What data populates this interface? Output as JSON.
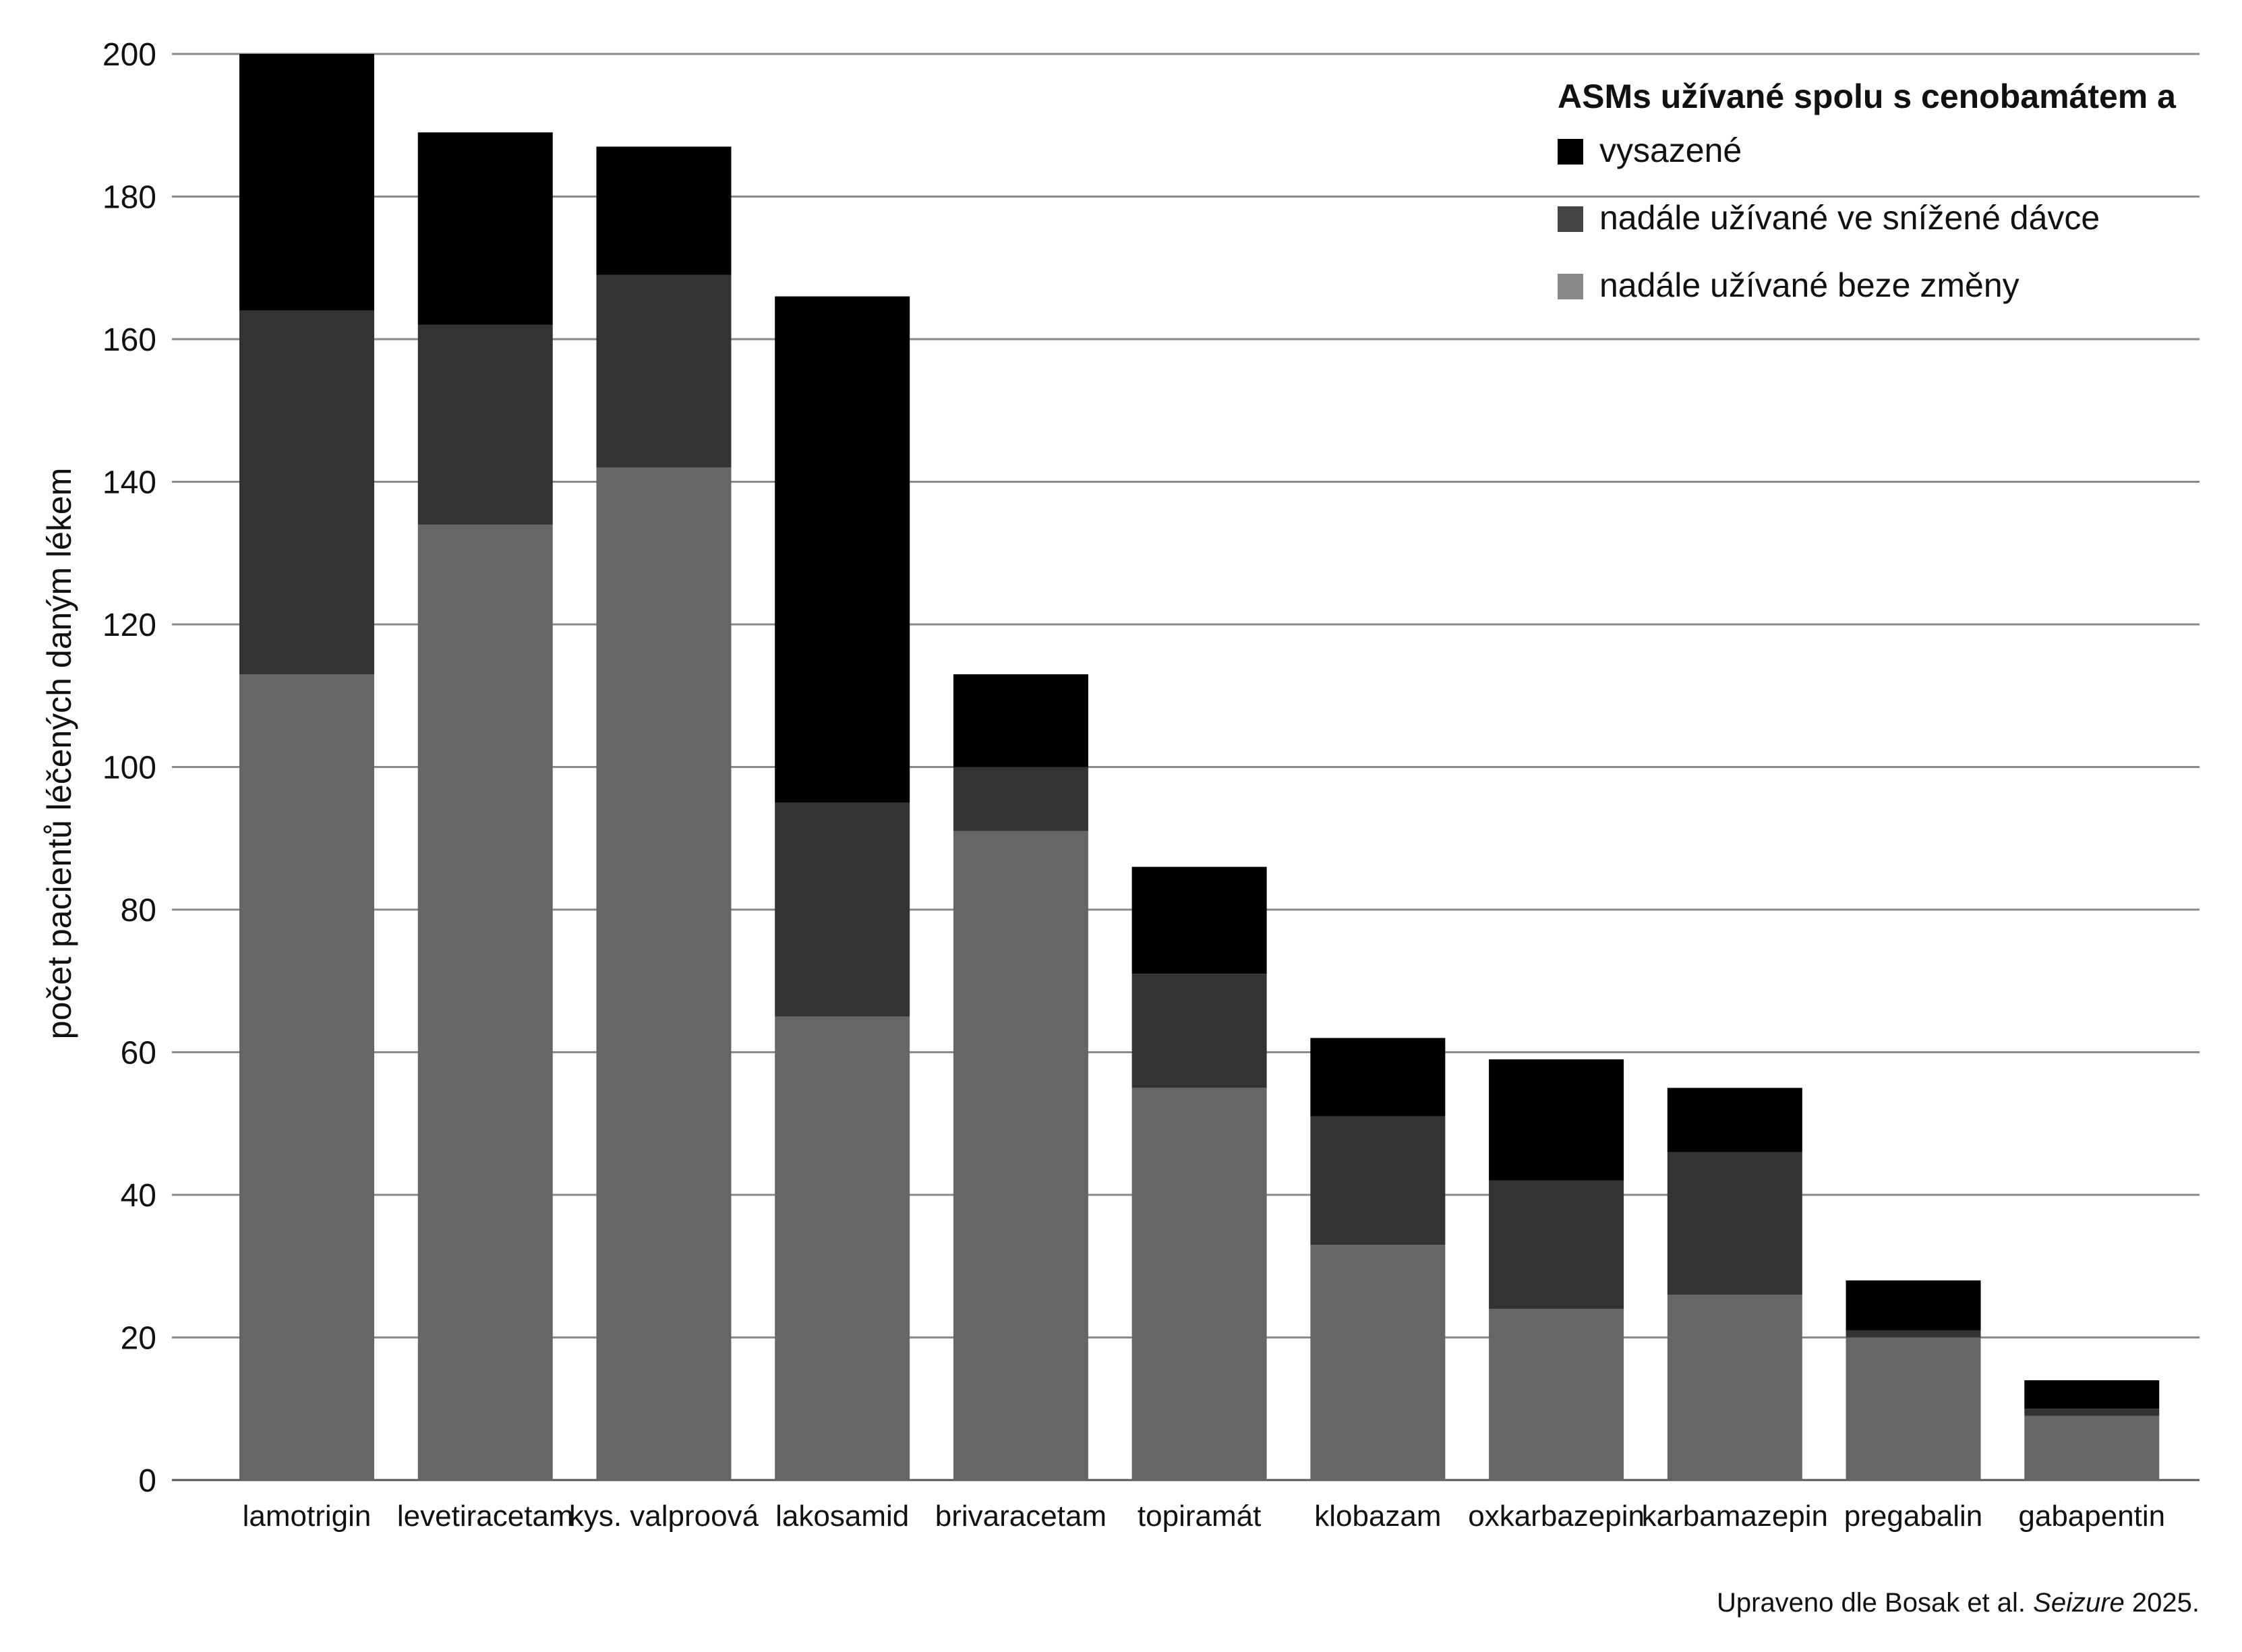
{
  "chart_data": {
    "type": "bar",
    "stacked": true,
    "ylabel": "počet pacientů léčených daným lékem",
    "xlabel": "",
    "ylim": [
      0,
      200
    ],
    "yticks": [
      0,
      20,
      40,
      60,
      80,
      100,
      120,
      140,
      160,
      180,
      200
    ],
    "grid": true,
    "legend_position": "top-right",
    "legend_title": "ASMs užívané spolu s cenobamátem a",
    "categories": [
      "lamotrigin",
      "levetiracetam",
      "kys. valproová",
      "lakosamid",
      "brivaracetam",
      "topiramát",
      "klobazam",
      "oxkarbazepin",
      "karbamazepin",
      "pregabalin",
      "gabapentin"
    ],
    "series": [
      {
        "name": "nadále užívané beze změny",
        "color": "#666666",
        "values": [
          113,
          134,
          142,
          65,
          91,
          55,
          33,
          24,
          26,
          20,
          9
        ]
      },
      {
        "name": "nadále užívané ve snížené dávce",
        "color": "#333333",
        "values": [
          51,
          28,
          27,
          30,
          9,
          16,
          18,
          18,
          20,
          1,
          1
        ]
      },
      {
        "name": "vysazené",
        "color": "#000000",
        "values": [
          36,
          27,
          18,
          71,
          13,
          15,
          11,
          17,
          9,
          7,
          4
        ]
      }
    ],
    "legend_order": [
      2,
      1,
      0
    ],
    "legend_colors": [
      "#000000",
      "#444444",
      "#888888"
    ],
    "source_note": {
      "prefix": "Upraveno dle Bosak et al. ",
      "journal": "Seizure",
      "suffix": " 2025."
    }
  }
}
